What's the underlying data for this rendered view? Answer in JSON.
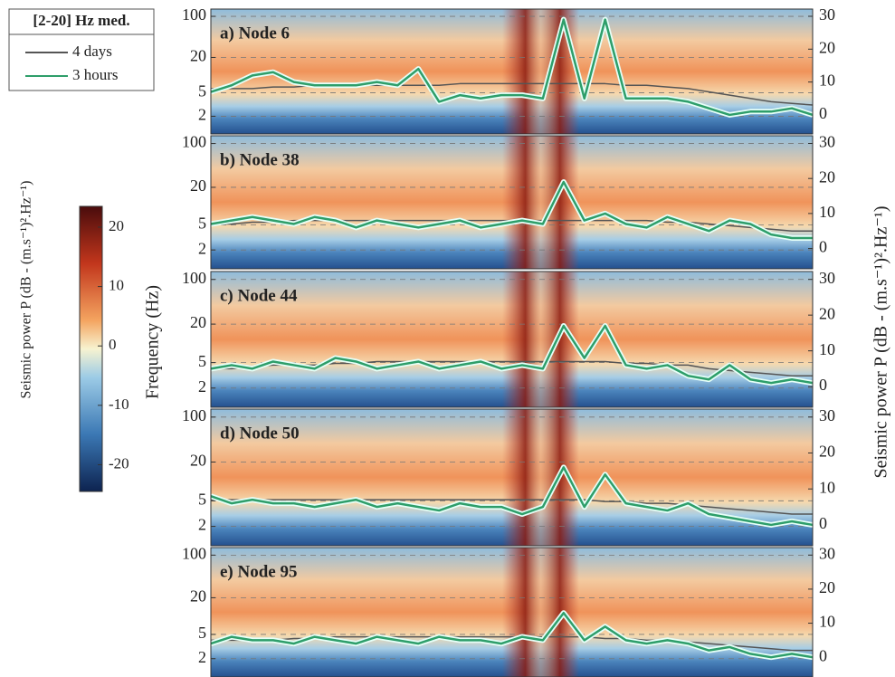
{
  "legend": {
    "title": "[2-20] Hz med."
  },
  "ylabel": "Frequency (Hz)",
  "y2label": "Seismic power P (dB - (m.s⁻¹)².Hz⁻¹)",
  "colorbar": {
    "label": "Seismic power P (dB - (m.s⁻¹)².Hz⁻¹)",
    "lim": [
      -24.5,
      23.5
    ],
    "ticks": [
      20,
      10,
      0,
      -10,
      -20
    ]
  },
  "chart_data": [
    {
      "type": "line",
      "title": "a) Node 6",
      "log_y": true,
      "ylim": [
        1,
        133
      ],
      "yticks": [
        2,
        5,
        20,
        100
      ],
      "y2lim": [
        -5.8,
        32.2
      ],
      "y2ticks": [
        0,
        10,
        20,
        30
      ],
      "grid": true,
      "series": [
        {
          "name": "4 days",
          "color": "#555555",
          "axis": "y2",
          "values": [
            8,
            8,
            8,
            8.5,
            8.5,
            9,
            9,
            9,
            9,
            9,
            9,
            9,
            9.5,
            9.5,
            9.5,
            9.5,
            9.5,
            9.5,
            9.5,
            9.5,
            9,
            9,
            8.5,
            8,
            7,
            6,
            5,
            4,
            3.5,
            3
          ]
        },
        {
          "name": "3 hours",
          "color": "#2e9e6a",
          "axis": "y2",
          "values": [
            7,
            9,
            12,
            13,
            10,
            9,
            9,
            9,
            10,
            9,
            14,
            4,
            6,
            5,
            6,
            6,
            5,
            29,
            5,
            29,
            5,
            5,
            5,
            4,
            2,
            0,
            1,
            1,
            2,
            0
          ]
        }
      ]
    },
    {
      "type": "line",
      "title": "b) Node 38",
      "log_y": true,
      "ylim": [
        1,
        133
      ],
      "yticks": [
        2,
        5,
        20,
        100
      ],
      "y2lim": [
        -5.8,
        32.2
      ],
      "y2ticks": [
        0,
        10,
        20,
        30
      ],
      "grid": true,
      "series": [
        {
          "name": "4 days",
          "color": "#555555",
          "axis": "y2",
          "values": [
            7,
            7,
            7.5,
            7.5,
            8,
            8,
            8,
            8,
            8,
            8,
            8,
            8,
            8,
            8,
            8,
            8,
            8,
            8,
            8,
            8,
            8,
            8,
            7.5,
            7.5,
            7,
            6.5,
            6,
            5.5,
            5,
            5
          ]
        },
        {
          "name": "3 hours",
          "color": "#2e9e6a",
          "axis": "y2",
          "values": [
            7,
            8,
            9,
            8,
            7,
            9,
            8,
            6,
            8,
            7,
            6,
            7,
            8,
            6,
            7,
            8,
            7,
            19,
            8,
            10,
            7,
            6,
            9,
            7,
            5,
            8,
            7,
            4,
            3,
            3
          ]
        }
      ]
    },
    {
      "type": "line",
      "title": "c) Node 44",
      "log_y": true,
      "ylim": [
        1,
        133
      ],
      "yticks": [
        2,
        5,
        20,
        100
      ],
      "y2lim": [
        -5.8,
        32.2
      ],
      "y2ticks": [
        0,
        10,
        20,
        30
      ],
      "grid": true,
      "series": [
        {
          "name": "4 days",
          "color": "#555555",
          "axis": "y2",
          "values": [
            5,
            5,
            5.5,
            6,
            6,
            6,
            6.5,
            6.5,
            7,
            7,
            7,
            7,
            7,
            7,
            7,
            7,
            7,
            7,
            7,
            7,
            6.5,
            6.5,
            6,
            6,
            5,
            4.5,
            4,
            3.5,
            3,
            3
          ]
        },
        {
          "name": "3 hours",
          "color": "#2e9e6a",
          "axis": "y2",
          "values": [
            5,
            6,
            5,
            7,
            6,
            5,
            8,
            7,
            5,
            6,
            7,
            5,
            6,
            7,
            5,
            6,
            5,
            17,
            8,
            17,
            6,
            5,
            6,
            3,
            2,
            6,
            2,
            1,
            2,
            1
          ]
        }
      ]
    },
    {
      "type": "line",
      "title": "d) Node 50",
      "log_y": true,
      "ylim": [
        1,
        133
      ],
      "yticks": [
        2,
        5,
        20,
        100
      ],
      "y2lim": [
        -5.8,
        32.2
      ],
      "y2ticks": [
        0,
        10,
        20,
        30
      ],
      "grid": true,
      "series": [
        {
          "name": "4 days",
          "color": "#555555",
          "axis": "y2",
          "values": [
            7,
            7,
            7,
            7,
            7,
            7,
            7,
            7,
            7,
            7,
            7,
            7,
            7,
            7,
            7,
            7,
            7,
            7,
            7,
            6.5,
            6.5,
            6,
            6,
            5.5,
            5,
            4.5,
            4,
            3.5,
            3,
            3
          ]
        },
        {
          "name": "3 hours",
          "color": "#2e9e6a",
          "axis": "y2",
          "values": [
            8,
            6,
            7,
            6,
            6,
            5,
            6,
            7,
            5,
            6,
            5,
            4,
            6,
            5,
            5,
            3,
            5,
            16,
            5,
            14,
            6,
            5,
            4,
            6,
            3,
            2,
            1,
            0,
            1,
            0
          ]
        }
      ]
    },
    {
      "type": "line",
      "title": "e) Node 95",
      "log_y": true,
      "ylim": [
        1,
        133
      ],
      "yticks": [
        2,
        5,
        20,
        100
      ],
      "y2lim": [
        -5.8,
        32.2
      ],
      "y2ticks": [
        0,
        10,
        20,
        30
      ],
      "grid": true,
      "series": [
        {
          "name": "4 days",
          "color": "#555555",
          "axis": "y2",
          "values": [
            5,
            5,
            5,
            5,
            5.5,
            5.5,
            6,
            6,
            6,
            6,
            6,
            6,
            6,
            6,
            6,
            6,
            6,
            6,
            6,
            5.5,
            5.5,
            5,
            5,
            4.5,
            4,
            3.5,
            3,
            2.5,
            2,
            2
          ]
        },
        {
          "name": "3 hours",
          "color": "#2e9e6a",
          "axis": "y2",
          "values": [
            4,
            6,
            5,
            5,
            4,
            6,
            5,
            4,
            6,
            5,
            4,
            6,
            5,
            5,
            4,
            6,
            5,
            13,
            5,
            9,
            5,
            4,
            5,
            4,
            2,
            3,
            1,
            0,
            1,
            0
          ]
        }
      ]
    }
  ]
}
